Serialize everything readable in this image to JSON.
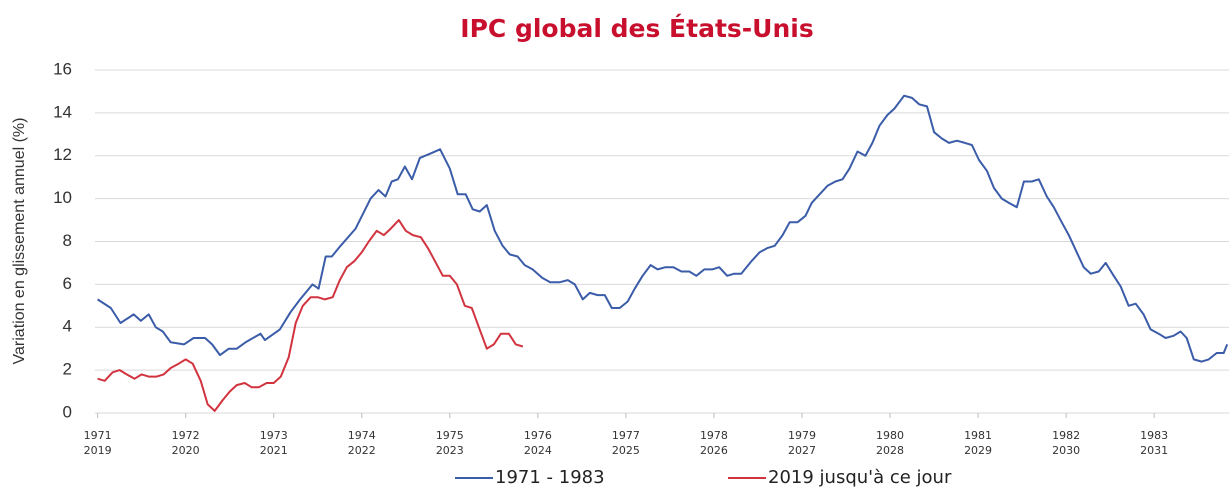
{
  "chart_data": {
    "type": "line",
    "title": "IPC global des États-Unis",
    "ylabel": "Variation en glissement annuel (%)",
    "xlim": [
      1970.97,
      1983.85
    ],
    "xticks": [
      1971,
      1972,
      1973,
      1974,
      1975,
      1976,
      1977,
      1978,
      1979,
      1980,
      1981,
      1982,
      1983
    ],
    "x2ticks": [
      "2019",
      "2020",
      "2021",
      "2022",
      "2023",
      "2024",
      "2025",
      "2026",
      "2027",
      "2028",
      "2029",
      "2030",
      "2031"
    ],
    "ylim": [
      0,
      16
    ],
    "yticks": [
      0,
      2,
      4,
      6,
      8,
      10,
      12,
      14,
      16
    ],
    "grid": true,
    "legend": "bottom",
    "series": [
      {
        "name": "1971 - 1983",
        "color": "#3b5ca8",
        "x": [
          1971.0,
          1971.15,
          1971.26,
          1971.41,
          1971.49,
          1971.58,
          1971.66,
          1971.74,
          1971.83,
          1971.98,
          1972.09,
          1972.22,
          1972.3,
          1972.39,
          1972.49,
          1972.58,
          1972.68,
          1972.85,
          1972.9,
          1973.07,
          1973.19,
          1973.3,
          1973.44,
          1973.51,
          1973.59,
          1973.66,
          1973.76,
          1973.93,
          1974.1,
          1974.19,
          1974.27,
          1974.34,
          1974.41,
          1974.49,
          1974.57,
          1974.66,
          1974.78,
          1974.89,
          1975.0,
          1975.09,
          1975.18,
          1975.26,
          1975.34,
          1975.42,
          1975.51,
          1975.6,
          1975.68,
          1975.77,
          1975.85,
          1975.94,
          1976.05,
          1976.14,
          1976.25,
          1976.34,
          1976.42,
          1976.51,
          1976.59,
          1976.68,
          1976.76,
          1976.84,
          1976.93,
          1977.02,
          1977.1,
          1977.19,
          1977.28,
          1977.36,
          1977.45,
          1977.54,
          1977.63,
          1977.72,
          1977.8,
          1977.89,
          1977.98,
          1978.06,
          1978.15,
          1978.23,
          1978.31,
          1978.43,
          1978.52,
          1978.61,
          1978.69,
          1978.78,
          1978.86,
          1978.95,
          1979.04,
          1979.11,
          1979.2,
          1979.29,
          1979.38,
          1979.46,
          1979.54,
          1979.63,
          1979.72,
          1979.8,
          1979.88,
          1979.97,
          1980.05,
          1980.16,
          1980.25,
          1980.33,
          1980.42,
          1980.5,
          1980.59,
          1980.67,
          1980.76,
          1980.85,
          1980.93,
          1981.01,
          1981.1,
          1981.18,
          1981.27,
          1981.35,
          1981.44,
          1981.52,
          1981.61,
          1981.69,
          1981.78,
          1981.86,
          1981.95,
          1982.03,
          1982.12,
          1982.2,
          1982.28,
          1982.37,
          1982.45,
          1982.54,
          1982.62,
          1982.71,
          1982.79,
          1982.88,
          1982.96,
          1983.05,
          1983.13,
          1983.22,
          1983.3,
          1983.37,
          1983.45,
          1983.54,
          1983.62,
          1983.71,
          1983.79,
          1983.83
        ],
        "values": [
          5.3,
          4.9,
          4.2,
          4.6,
          4.3,
          4.6,
          4.0,
          3.8,
          3.3,
          3.2,
          3.5,
          3.5,
          3.2,
          2.7,
          3.0,
          3.0,
          3.3,
          3.7,
          3.4,
          3.9,
          4.7,
          5.3,
          6.0,
          5.8,
          7.3,
          7.3,
          7.8,
          8.6,
          10.0,
          10.4,
          10.1,
          10.8,
          10.9,
          11.5,
          10.9,
          11.9,
          12.1,
          12.3,
          11.4,
          10.2,
          10.2,
          9.5,
          9.4,
          9.7,
          8.5,
          7.8,
          7.4,
          7.3,
          6.9,
          6.7,
          6.3,
          6.1,
          6.1,
          6.2,
          6.0,
          5.3,
          5.6,
          5.5,
          5.5,
          4.9,
          4.9,
          5.2,
          5.8,
          6.4,
          6.9,
          6.7,
          6.8,
          6.8,
          6.6,
          6.6,
          6.4,
          6.7,
          6.7,
          6.8,
          6.4,
          6.5,
          6.5,
          7.1,
          7.5,
          7.7,
          7.8,
          8.3,
          8.9,
          8.9,
          9.2,
          9.8,
          10.2,
          10.6,
          10.8,
          10.9,
          11.4,
          12.2,
          12.0,
          12.6,
          13.4,
          13.9,
          14.2,
          14.8,
          14.7,
          14.4,
          14.3,
          13.1,
          12.8,
          12.6,
          12.7,
          12.6,
          12.5,
          11.8,
          11.3,
          10.5,
          10.0,
          9.8,
          9.6,
          10.8,
          10.8,
          10.9,
          10.1,
          9.6,
          8.9,
          8.3,
          7.5,
          6.8,
          6.5,
          6.6,
          7.0,
          6.4,
          5.9,
          5.0,
          5.1,
          4.6,
          3.9,
          3.7,
          3.5,
          3.6,
          3.8,
          3.5,
          2.5,
          2.4,
          2.5,
          2.8,
          2.8,
          3.2
        ]
      },
      {
        "name": "2019 jusqu'à ce jour",
        "color": "#d2343f",
        "x": [
          1971.0,
          1971.08,
          1971.17,
          1971.25,
          1971.33,
          1971.42,
          1971.5,
          1971.58,
          1971.67,
          1971.75,
          1971.83,
          1971.92,
          1972.0,
          1972.08,
          1972.17,
          1972.25,
          1972.33,
          1972.42,
          1972.5,
          1972.58,
          1972.67,
          1972.75,
          1972.83,
          1972.92,
          1973.0,
          1973.08,
          1973.17,
          1973.25,
          1973.33,
          1973.42,
          1973.5,
          1973.58,
          1973.67,
          1973.75,
          1973.83,
          1973.92,
          1974.0,
          1974.08,
          1974.17,
          1974.25,
          1974.33,
          1974.42,
          1974.5,
          1974.58,
          1974.67,
          1974.75,
          1974.83,
          1974.92,
          1975.0,
          1975.08,
          1975.17,
          1975.25,
          1975.33,
          1975.42,
          1975.5,
          1975.58,
          1975.67,
          1975.75,
          1975.83
        ],
        "values": [
          1.6,
          1.5,
          1.9,
          2.0,
          1.8,
          1.6,
          1.8,
          1.7,
          1.7,
          1.8,
          2.1,
          2.3,
          2.5,
          2.3,
          1.5,
          0.4,
          0.1,
          0.6,
          1.0,
          1.3,
          1.4,
          1.2,
          1.2,
          1.4,
          1.4,
          1.7,
          2.6,
          4.2,
          5.0,
          5.4,
          5.4,
          5.3,
          5.4,
          6.2,
          6.8,
          7.1,
          7.5,
          8.0,
          8.5,
          8.3,
          8.6,
          9.0,
          8.5,
          8.3,
          8.2,
          7.7,
          7.1,
          6.4,
          6.4,
          6.0,
          5.0,
          4.9,
          4.0,
          3.0,
          3.2,
          3.7,
          3.7,
          3.2,
          3.1
        ]
      }
    ]
  }
}
